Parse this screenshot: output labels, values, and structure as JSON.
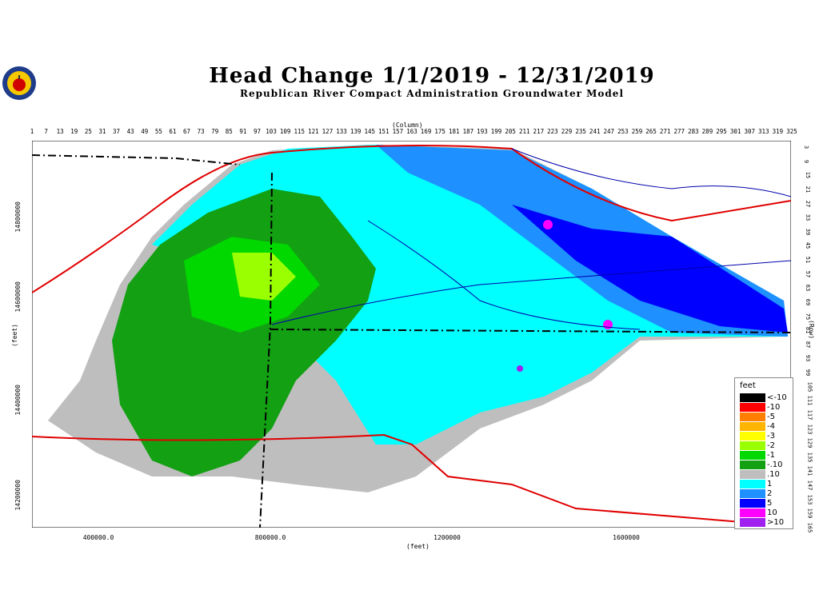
{
  "title": "Head Change 1/1/2019 - 12/31/2019",
  "subtitle": "Republican River Compact Administration Groundwater Model",
  "axis": {
    "column_label": "(Column)",
    "row_label": "(Row)",
    "feet_y": "(feet)",
    "feet_x": "(feet)",
    "columns": [
      "1",
      "7",
      "13",
      "19",
      "25",
      "31",
      "37",
      "43",
      "49",
      "55",
      "61",
      "67",
      "73",
      "79",
      "85",
      "91",
      "97",
      "103",
      "109",
      "115",
      "121",
      "127",
      "133",
      "139",
      "145",
      "151",
      "157",
      "163",
      "169",
      "175",
      "181",
      "187",
      "193",
      "199",
      "205",
      "211",
      "217",
      "223",
      "229",
      "235",
      "241",
      "247",
      "253",
      "259",
      "265",
      "271",
      "277",
      "283",
      "289",
      "295",
      "301",
      "307",
      "313",
      "319",
      "325"
    ],
    "rows": [
      "3",
      "9",
      "15",
      "21",
      "27",
      "33",
      "39",
      "45",
      "51",
      "57",
      "63",
      "69",
      "75",
      "81",
      "87",
      "93",
      "99",
      "105",
      "111",
      "117",
      "123",
      "129",
      "135",
      "141",
      "147",
      "153",
      "159",
      "165"
    ],
    "y_ticks": [
      "14800000",
      "14600000",
      "14400000",
      "14200000"
    ],
    "x_ticks": [
      "400000.0",
      "800000.0",
      "1200000",
      "1600000"
    ]
  },
  "legend": {
    "title": "feet",
    "items": [
      {
        "label": "<-10",
        "color": "#000000"
      },
      {
        "label": "-10",
        "color": "#ff0000"
      },
      {
        "label": "-5",
        "color": "#ff7f00"
      },
      {
        "label": "-4",
        "color": "#ffb400"
      },
      {
        "label": "-3",
        "color": "#ffff00"
      },
      {
        "label": "-2",
        "color": "#9aff00"
      },
      {
        "label": "-1",
        "color": "#00d800"
      },
      {
        "label": "-.10",
        "color": "#13a013"
      },
      {
        "label": ".10",
        "color": "#bebebe"
      },
      {
        "label": "1",
        "color": "#00ffff"
      },
      {
        "label": "2",
        "color": "#1e90ff"
      },
      {
        "label": "5",
        "color": "#0000ff"
      },
      {
        "label": "10",
        "color": "#ff00ff"
      },
      {
        "label": ">10",
        "color": "#a020f0"
      }
    ]
  }
}
